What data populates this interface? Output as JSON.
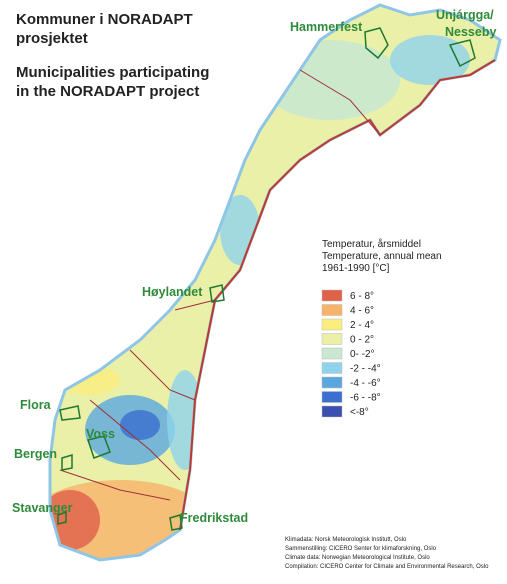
{
  "title_no": [
    "Kommuner i NORADAPT",
    "prosjektet"
  ],
  "title_en": [
    "Municipalities participating",
    "in the NORADAPT project"
  ],
  "municipalities": [
    {
      "lines": [
        "Hammerfest"
      ]
    },
    {
      "lines": [
        "Unjárgga/",
        "Nesseby"
      ]
    },
    {
      "lines": [
        "Høylandet"
      ]
    },
    {
      "lines": [
        "Flora"
      ]
    },
    {
      "lines": [
        "Voss"
      ]
    },
    {
      "lines": [
        "Bergen"
      ]
    },
    {
      "lines": [
        "Stavanger"
      ]
    },
    {
      "lines": [
        "Fredrikstad"
      ]
    }
  ],
  "legend": {
    "title": [
      "Temperatur, årsmiddel",
      "Temperature, annual mean",
      "1961-1990 [°C]"
    ],
    "items": [
      {
        "label": "6 - 8°",
        "color": "#e0604a"
      },
      {
        "label": "4 - 6°",
        "color": "#f7b36a"
      },
      {
        "label": "2 - 4°",
        "color": "#fbee7e"
      },
      {
        "label": "0 - 2°",
        "color": "#eaf0a8"
      },
      {
        "label": "0- -2°",
        "color": "#c9e8cf"
      },
      {
        "label": "-2 - -4°",
        "color": "#8fd3ec"
      },
      {
        "label": "-4 - -6°",
        "color": "#5aa7e0"
      },
      {
        "label": "-6 - -8°",
        "color": "#3b6fd0"
      },
      {
        "label": "<-8°",
        "color": "#3a4fb0"
      }
    ]
  },
  "credits": [
    "Klimadata: Norsk Meteorologisk Institutt, Oslo",
    "Sammenstilling: CICERO Senter for klimaforskning, Oslo",
    "Climate data: Norwegian Meteorological Institute, Oslo",
    "Compilation: CICERO Center for Climate and Environmental Research, Oslo"
  ]
}
